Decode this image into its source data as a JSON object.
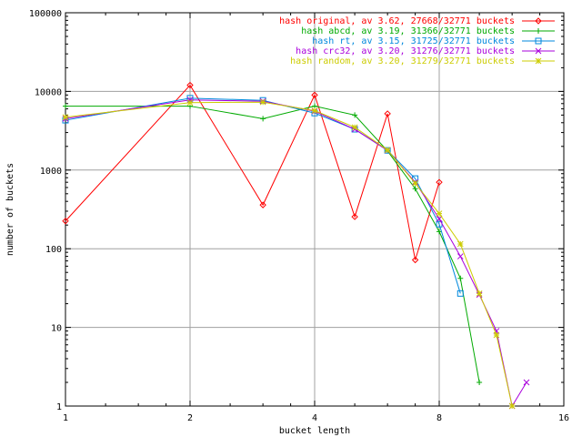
{
  "chart_data": {
    "type": "line",
    "xlabel": "bucket length",
    "ylabel": "number of buckets",
    "x_scale": "log2",
    "y_scale": "log10",
    "xlim": [
      1,
      16
    ],
    "ylim": [
      1,
      100000
    ],
    "x_ticks": [
      1,
      2,
      4,
      8,
      16
    ],
    "y_ticks": [
      1,
      10,
      100,
      1000,
      10000,
      100000
    ],
    "grid": true,
    "legend_position": "top-right",
    "series": [
      {
        "name": "hash original, av 3.62, 27668/32771 buckets",
        "color": "#ff0000",
        "marker": "diamond",
        "x": [
          1,
          2,
          3,
          4,
          5,
          6,
          7,
          8
        ],
        "y": [
          225,
          12000,
          360,
          9000,
          255,
          5200,
          72,
          700
        ]
      },
      {
        "name": "hash abcd, av 3.19, 31366/32771 buckets",
        "color": "#00aa00",
        "marker": "plus",
        "x": [
          1,
          2,
          3,
          4,
          5,
          6,
          7,
          8,
          9,
          10
        ],
        "y": [
          6500,
          6500,
          4500,
          6500,
          5000,
          1750,
          580,
          165,
          42,
          2
        ]
      },
      {
        "name": "hash rt, av 3.15, 31725/32771 buckets",
        "color": "#0088dd",
        "marker": "square",
        "x": [
          1,
          2,
          3,
          4,
          5,
          6,
          7,
          8,
          9
        ],
        "y": [
          4300,
          8200,
          7700,
          5300,
          3300,
          1780,
          780,
          205,
          27
        ]
      },
      {
        "name": "hash crc32, av 3.20, 31276/32771 buckets",
        "color": "#aa00dd",
        "marker": "x",
        "x": [
          1,
          2,
          3,
          4,
          5,
          6,
          7,
          8,
          9,
          10,
          11,
          12,
          13
        ],
        "y": [
          4500,
          7800,
          7500,
          5600,
          3300,
          1780,
          700,
          240,
          80,
          26,
          9,
          1,
          2
        ]
      },
      {
        "name": "hash random, av 3.20, 31279/32771 buckets",
        "color": "#cccc00",
        "marker": "star",
        "x": [
          1,
          2,
          3,
          4,
          5,
          6,
          7,
          8,
          9,
          10,
          11,
          12
        ],
        "y": [
          4700,
          7200,
          7300,
          5700,
          3500,
          1800,
          680,
          280,
          115,
          27,
          8,
          1
        ]
      }
    ]
  }
}
